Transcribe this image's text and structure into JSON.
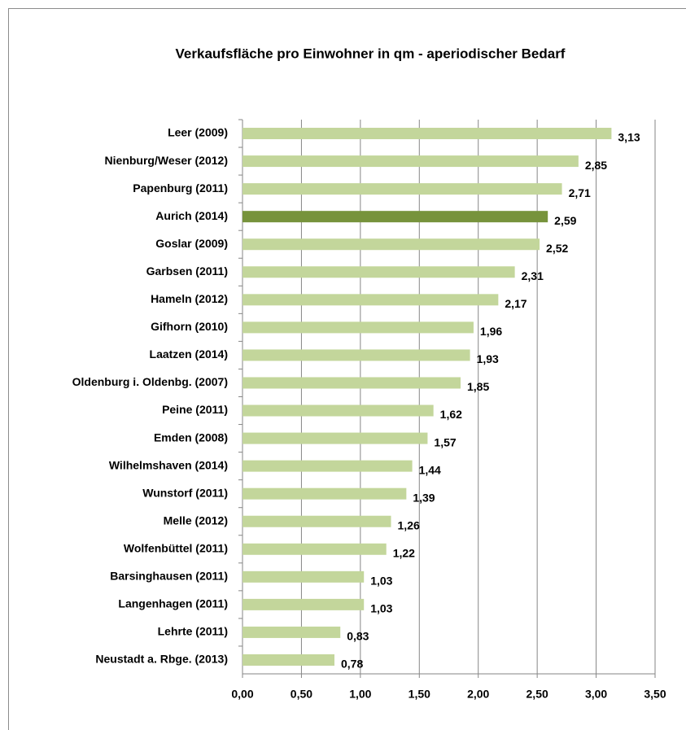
{
  "chart_data": {
    "type": "hbar",
    "title": "Verkaufsfläche pro Einwohner in qm - aperiodischer Bedarf",
    "categories": [
      "Leer (2009)",
      "Nienburg/Weser (2012)",
      "Papenburg (2011)",
      "Aurich (2014)",
      "Goslar  (2009)",
      "Garbsen (2011)",
      "Hameln (2012)",
      "Gifhorn (2010)",
      "Laatzen (2014)",
      "Oldenburg i. Oldenbg. (2007)",
      "Peine (2011)",
      "Emden (2008)",
      "Wilhelmshaven (2014)",
      "Wunstorf (2011)",
      "Melle (2012)",
      "Wolfenbüttel (2011)",
      "Barsinghausen  (2011)",
      "Langenhagen (2011)",
      "Lehrte (2011)",
      "Neustadt a. Rbge. (2013)"
    ],
    "values": [
      3.13,
      2.85,
      2.71,
      2.59,
      2.52,
      2.31,
      2.17,
      1.96,
      1.93,
      1.85,
      1.62,
      1.57,
      1.44,
      1.39,
      1.26,
      1.22,
      1.03,
      1.03,
      0.83,
      0.78
    ],
    "value_labels": [
      "3,13",
      "2,85",
      "2,71",
      "2,59",
      "2,52",
      "2,31",
      "2,17",
      "1,96",
      "1,93",
      "1,85",
      "1,62",
      "1,57",
      "1,44",
      "1,39",
      "1,26",
      "1,22",
      "1,03",
      "1,03",
      "0,83",
      "0,78"
    ],
    "colors": [
      "#c3d69b",
      "#c3d69b",
      "#c3d69b",
      "#77933c",
      "#c3d69b",
      "#c3d69b",
      "#c3d69b",
      "#c3d69b",
      "#c3d69b",
      "#c3d69b",
      "#c3d69b",
      "#c3d69b",
      "#c3d69b",
      "#c3d69b",
      "#c3d69b",
      "#c3d69b",
      "#c3d69b",
      "#c3d69b",
      "#c3d69b",
      "#c3d69b"
    ],
    "xlim": [
      0,
      3.5
    ],
    "xticks": [
      {
        "value": 0,
        "label": "0,00"
      },
      {
        "value": 0.5,
        "label": "0,50"
      },
      {
        "value": 1,
        "label": "1,00"
      },
      {
        "value": 1.5,
        "label": "1,50"
      },
      {
        "value": 2,
        "label": "2,00"
      },
      {
        "value": 2.5,
        "label": "2,50"
      },
      {
        "value": 3,
        "label": "3,00"
      },
      {
        "value": 3.5,
        "label": "3,50"
      }
    ],
    "grid": true
  }
}
